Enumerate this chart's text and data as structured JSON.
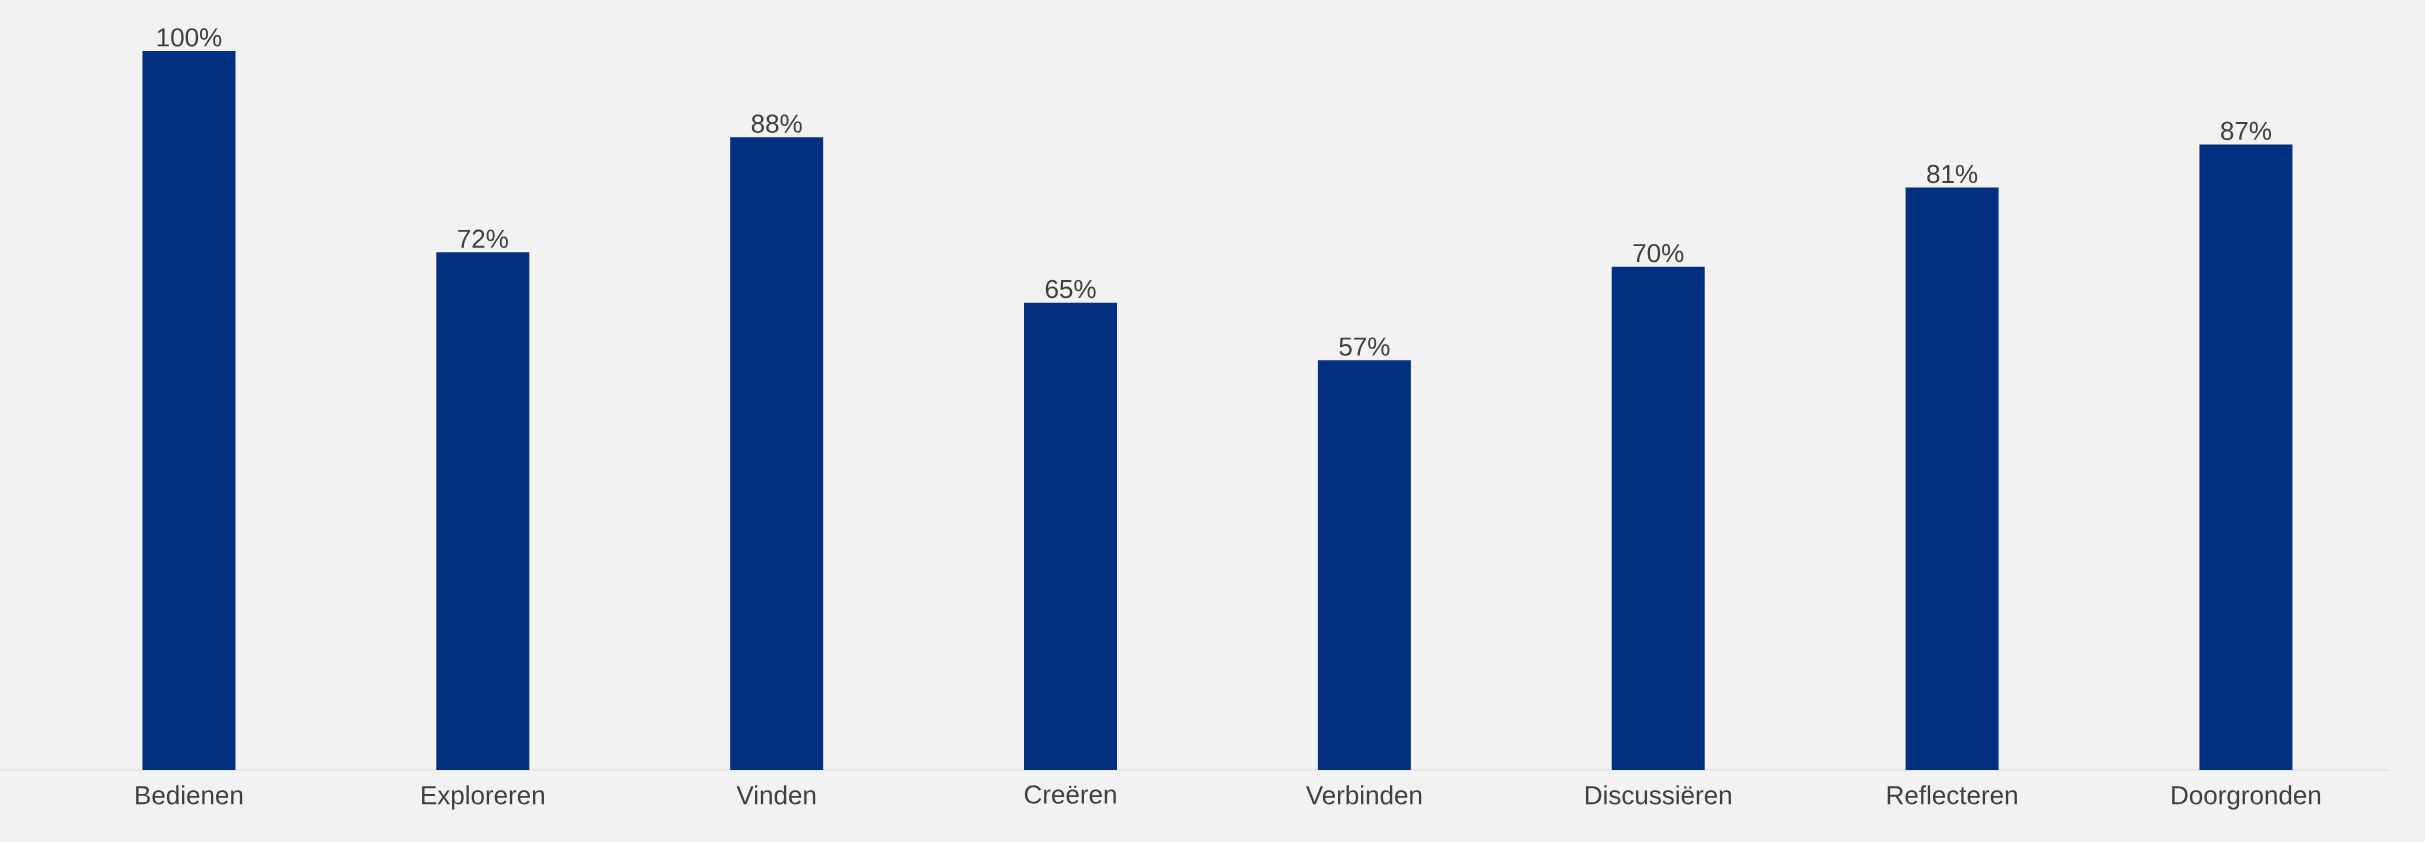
{
  "chart_data": {
    "type": "bar",
    "categories": [
      "Bedienen",
      "Exploreren",
      "Vinden",
      "Creëren",
      "Verbinden",
      "Discussiëren",
      "Reflecteren",
      "Doorgronden"
    ],
    "values": [
      100,
      72,
      88,
      65,
      57,
      70,
      81,
      87
    ],
    "value_labels": [
      "100%",
      "72%",
      "88%",
      "65%",
      "57%",
      "70%",
      "81%",
      "87%"
    ],
    "color": "#00307f",
    "ylim": [
      0,
      100
    ]
  }
}
